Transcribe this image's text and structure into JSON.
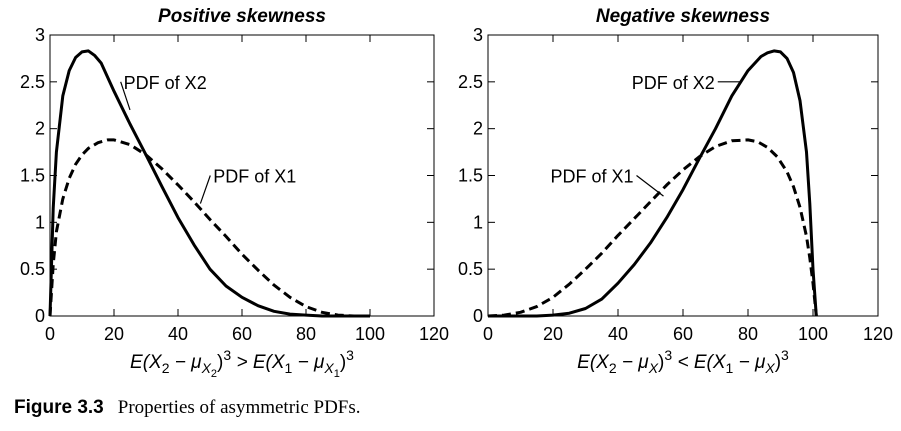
{
  "caption": {
    "label": "Figure 3.3",
    "text": "Properties of asymmetric PDFs."
  },
  "chart_data": [
    {
      "type": "line",
      "title": "Positive skewness",
      "xlim": [
        0,
        120
      ],
      "ylim": [
        0,
        3
      ],
      "x_ticks": [
        0,
        20,
        40,
        60,
        80,
        100,
        120
      ],
      "y_ticks": [
        0,
        0.5,
        1,
        1.5,
        2,
        2.5,
        3
      ],
      "x_tick_labels": [
        "0",
        "20",
        "40",
        "60",
        "80",
        "100",
        "120"
      ],
      "y_tick_labels": [
        "0",
        "0.5",
        "1",
        "1.5",
        "2",
        "2.5",
        "3"
      ],
      "xlabel": {
        "segments": [
          {
            "t": "E(X"
          },
          {
            "t": "2",
            "sub": true
          },
          {
            "t": " − μ"
          },
          {
            "t": "X",
            "sub": true
          },
          {
            "t": "2",
            "subsub": true
          },
          {
            "t": ")"
          },
          {
            "t": "3",
            "sup": true
          },
          {
            "t": " > E(X"
          },
          {
            "t": "1",
            "sub": true
          },
          {
            "t": " − μ"
          },
          {
            "t": "X",
            "sub": true
          },
          {
            "t": "1",
            "subsub": true
          },
          {
            "t": ")"
          },
          {
            "t": "3",
            "sup": true
          }
        ]
      },
      "series": [
        {
          "name": "PDF of X2",
          "style": "solid",
          "x": [
            0,
            1,
            2,
            4,
            6,
            8,
            10,
            12,
            14,
            16,
            20,
            25,
            30,
            35,
            40,
            45,
            50,
            55,
            60,
            65,
            70,
            75,
            80,
            85,
            90,
            95,
            100
          ],
          "y": [
            0,
            1.15,
            1.75,
            2.35,
            2.62,
            2.76,
            2.82,
            2.83,
            2.78,
            2.7,
            2.4,
            2.05,
            1.72,
            1.38,
            1.05,
            0.76,
            0.5,
            0.32,
            0.2,
            0.11,
            0.05,
            0.02,
            0.01,
            0.0,
            0.0,
            0.0,
            0.0
          ]
        },
        {
          "name": "PDF of X1",
          "style": "dashed",
          "x": [
            0,
            1,
            2,
            4,
            6,
            8,
            10,
            12,
            15,
            18,
            20,
            25,
            30,
            35,
            40,
            45,
            50,
            55,
            60,
            65,
            70,
            75,
            80,
            85,
            90,
            95,
            100
          ],
          "y": [
            0,
            0.55,
            0.9,
            1.25,
            1.47,
            1.62,
            1.72,
            1.79,
            1.85,
            1.88,
            1.88,
            1.83,
            1.72,
            1.57,
            1.4,
            1.22,
            1.03,
            0.85,
            0.66,
            0.49,
            0.33,
            0.2,
            0.1,
            0.04,
            0.01,
            0.0,
            0.0
          ]
        }
      ],
      "annotations": [
        {
          "text": "PDF of X2",
          "series": "PDF of X2",
          "point": [
            25,
            2.2
          ],
          "label_at": [
            36,
            2.5
          ]
        },
        {
          "text": "PDF of X1",
          "series": "PDF of X1",
          "point": [
            47,
            1.2
          ],
          "label_at": [
            64,
            1.5
          ]
        }
      ]
    },
    {
      "type": "line",
      "title": "Negative skewness",
      "xlim": [
        0,
        120
      ],
      "ylim": [
        0,
        3
      ],
      "x_ticks": [
        0,
        20,
        40,
        60,
        80,
        100,
        120
      ],
      "y_ticks": [
        0,
        0.5,
        1,
        1.5,
        2,
        2.5,
        3
      ],
      "x_tick_labels": [
        "0",
        "20",
        "40",
        "60",
        "80",
        "100",
        "120"
      ],
      "y_tick_labels": [
        "0",
        "0.5",
        "1",
        "1.5",
        "2",
        "2.5",
        "3"
      ],
      "xlabel": {
        "segments": [
          {
            "t": "E(X"
          },
          {
            "t": "2",
            "sub": true
          },
          {
            "t": " − μ"
          },
          {
            "t": "X",
            "sub": true
          },
          {
            "t": ")"
          },
          {
            "t": "3",
            "sup": true
          },
          {
            "t": " < E(X"
          },
          {
            "t": "1",
            "sub": true
          },
          {
            "t": " − μ"
          },
          {
            "t": "X",
            "sub": true
          },
          {
            "t": ")"
          },
          {
            "t": "3",
            "sup": true
          }
        ]
      },
      "series": [
        {
          "name": "PDF of X2",
          "style": "solid",
          "x": [
            0,
            5,
            10,
            15,
            20,
            25,
            30,
            35,
            40,
            45,
            50,
            55,
            60,
            65,
            70,
            75,
            80,
            84,
            86,
            88,
            90,
            92,
            94,
            96,
            98,
            99,
            100,
            101
          ],
          "y": [
            0,
            0.0,
            0.0,
            0.0,
            0.01,
            0.03,
            0.08,
            0.18,
            0.35,
            0.55,
            0.78,
            1.05,
            1.35,
            1.68,
            2.0,
            2.35,
            2.62,
            2.77,
            2.81,
            2.83,
            2.82,
            2.75,
            2.6,
            2.3,
            1.75,
            1.2,
            0.5,
            0.0
          ]
        },
        {
          "name": "PDF of X1",
          "style": "dashed",
          "x": [
            0,
            5,
            10,
            15,
            20,
            25,
            30,
            35,
            40,
            45,
            50,
            55,
            60,
            65,
            70,
            75,
            80,
            83,
            86,
            89,
            92,
            94,
            96,
            98,
            99,
            100,
            101
          ],
          "y": [
            0,
            0.01,
            0.04,
            0.1,
            0.2,
            0.34,
            0.5,
            0.67,
            0.86,
            1.04,
            1.22,
            1.4,
            1.56,
            1.7,
            1.81,
            1.87,
            1.88,
            1.86,
            1.8,
            1.7,
            1.54,
            1.38,
            1.16,
            0.85,
            0.62,
            0.35,
            0.0
          ]
        }
      ],
      "annotations": [
        {
          "text": "PDF of X2",
          "series": "PDF of X2",
          "point": [
            78,
            2.5
          ],
          "label_at": [
            57,
            2.5
          ]
        },
        {
          "text": "PDF of X1",
          "series": "PDF of X1",
          "point": [
            54,
            1.28
          ],
          "label_at": [
            32,
            1.5
          ]
        }
      ]
    }
  ]
}
